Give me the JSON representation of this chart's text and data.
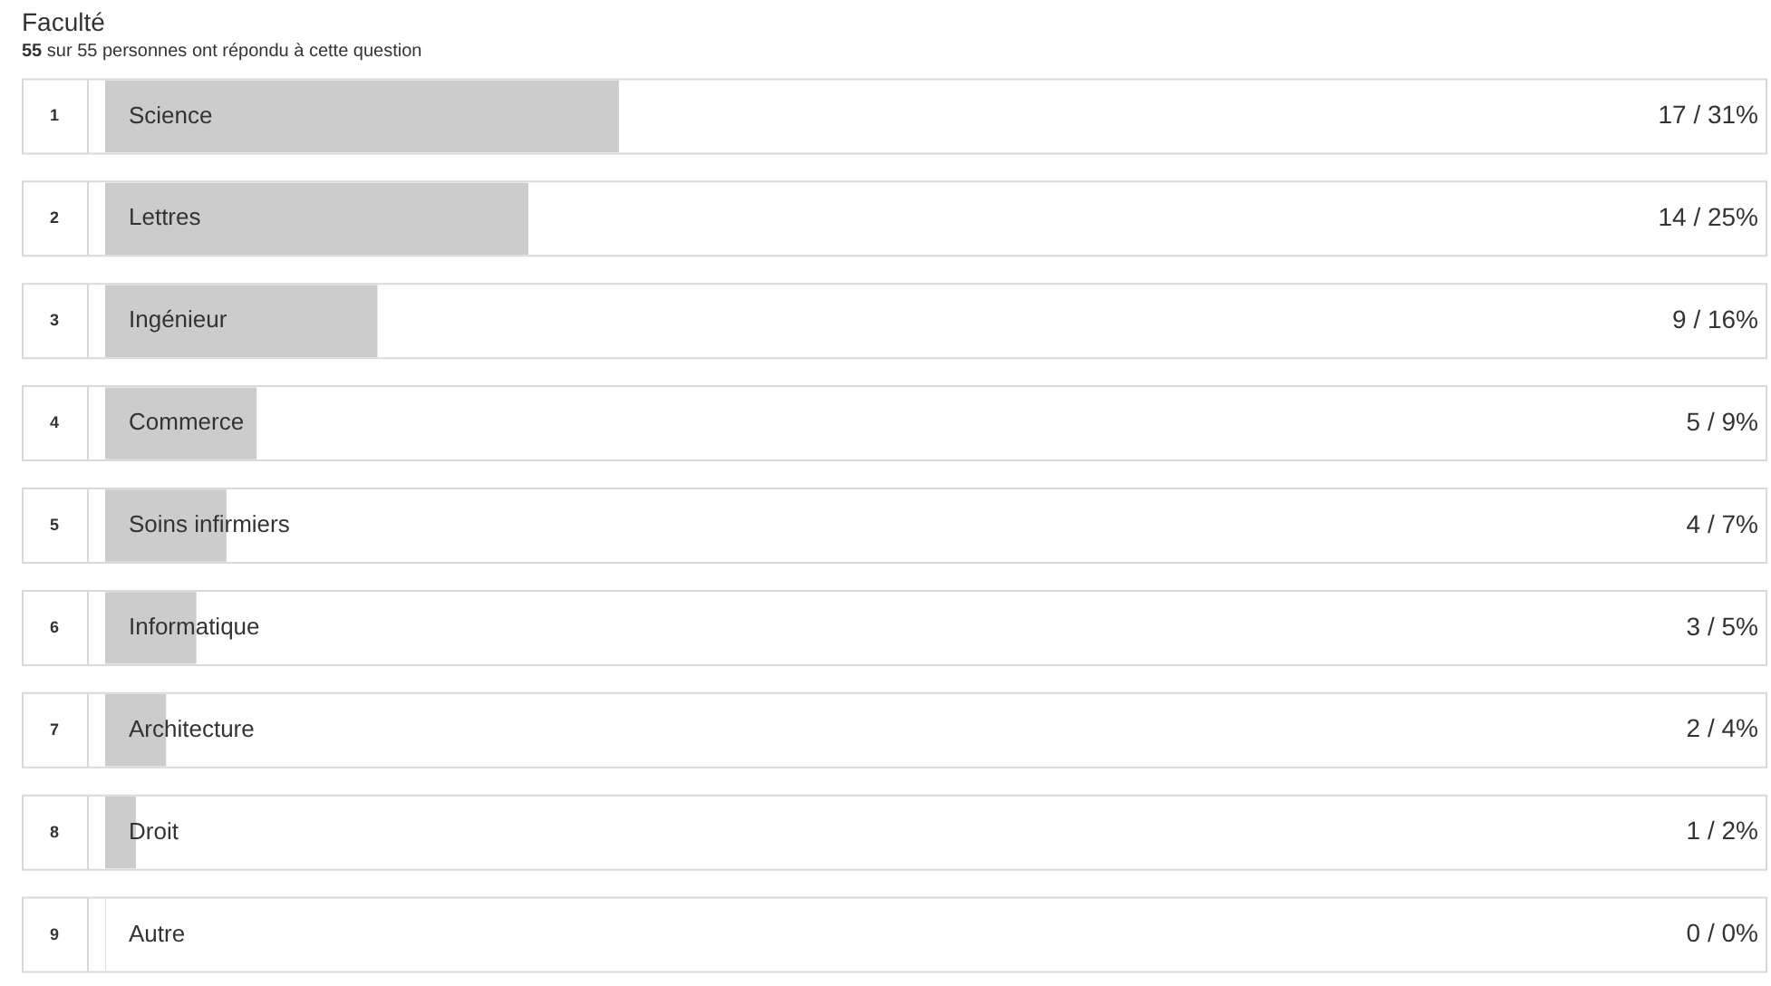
{
  "chart_data": {
    "type": "bar",
    "orientation": "horizontal",
    "title": "Faculté",
    "subtitle": "55 sur 55 personnes ont répondu à cette question",
    "categories": [
      "Science",
      "Lettres",
      "Ingénieur",
      "Commerce",
      "Soins infirmiers",
      "Informatique",
      "Architecture",
      "Droit",
      "Autre"
    ],
    "values": [
      17,
      14,
      9,
      5,
      4,
      3,
      2,
      1,
      0
    ],
    "value_labels": [
      "17 / 31%",
      "14 / 25%",
      "9 / 16%",
      "5 / 9%",
      "4 / 7%",
      "3 / 5%",
      "2 / 4%",
      "1 / 2%",
      "0 / 0%"
    ],
    "color": "#cccccc",
    "annotations": [
      "1",
      "2",
      "3",
      "4",
      "5",
      "6",
      "7",
      "8",
      "9"
    ]
  }
}
